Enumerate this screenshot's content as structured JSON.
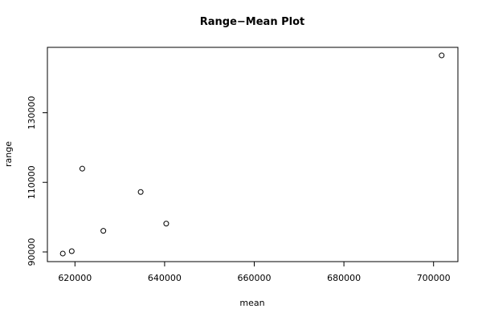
{
  "chart_data": {
    "type": "scatter",
    "title": "Range−Mean Plot",
    "x_label": "mean",
    "y_label": "range",
    "x": [
      617285,
      619280,
      621630,
      626330,
      634660,
      640360,
      701810
    ],
    "values": [
      89540,
      90230,
      113930,
      96070,
      107225,
      98150,
      146470
    ],
    "color": "#000000",
    "xlim": [
      613850,
      705430
    ],
    "xticks": [
      620000,
      640000,
      660000,
      680000,
      700000
    ],
    "ylim": [
      87225,
      148790
    ],
    "yticks": [
      90000,
      110000,
      130000
    ]
  }
}
